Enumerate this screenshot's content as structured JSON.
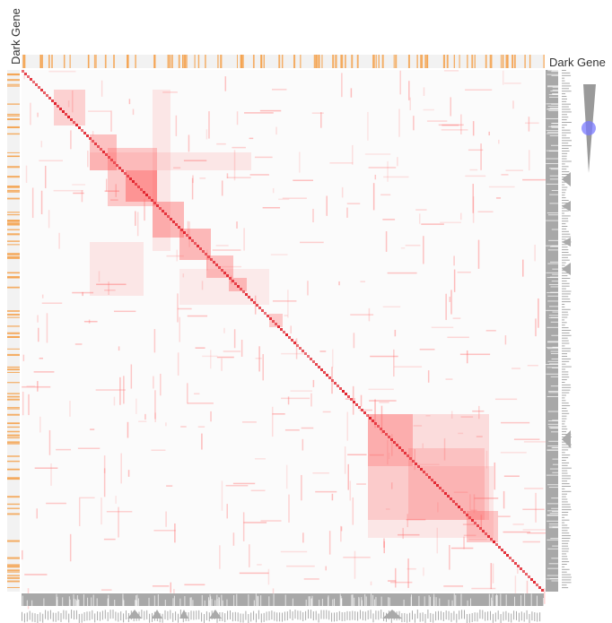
{
  "labels": {
    "row_category": "Dark Gene",
    "column_category": "Dark Gene"
  }
}
